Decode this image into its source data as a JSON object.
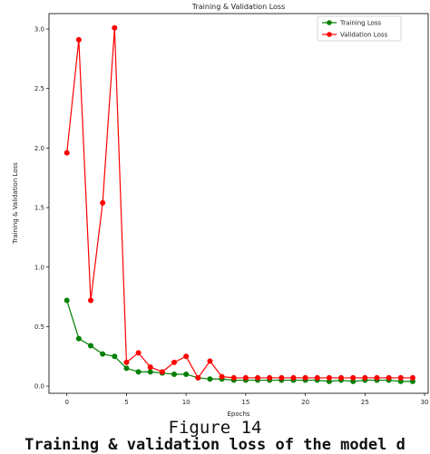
{
  "chart_data": {
    "type": "line",
    "title": "Training & Validation Loss",
    "xlabel": "Epochs",
    "ylabel": "Training & Validation Loss",
    "xlim": [
      -1.5,
      30.3
    ],
    "ylim": [
      -0.06,
      3.13
    ],
    "xticks": [
      0,
      5,
      10,
      15,
      20,
      25,
      30
    ],
    "yticks": [
      0.0,
      0.5,
      1.0,
      1.5,
      2.0,
      2.5,
      3.0
    ],
    "grid": false,
    "legend_position": "top-right",
    "x": [
      0,
      1,
      2,
      3,
      4,
      5,
      6,
      7,
      8,
      9,
      10,
      11,
      12,
      13,
      14,
      15,
      16,
      17,
      18,
      19,
      20,
      21,
      22,
      23,
      24,
      25,
      26,
      27,
      28,
      29
    ],
    "series": [
      {
        "name": "Training Loss",
        "color": "#008000",
        "values": [
          0.72,
          0.4,
          0.34,
          0.27,
          0.25,
          0.15,
          0.12,
          0.12,
          0.11,
          0.1,
          0.1,
          0.07,
          0.06,
          0.06,
          0.05,
          0.05,
          0.05,
          0.05,
          0.05,
          0.05,
          0.05,
          0.05,
          0.04,
          0.05,
          0.04,
          0.05,
          0.05,
          0.05,
          0.04,
          0.04
        ]
      },
      {
        "name": "Validation Loss",
        "color": "#ff0000",
        "values": [
          1.96,
          2.91,
          0.72,
          1.54,
          3.01,
          0.2,
          0.28,
          0.16,
          0.12,
          0.2,
          0.25,
          0.07,
          0.21,
          0.08,
          0.07,
          0.07,
          0.07,
          0.07,
          0.07,
          0.07,
          0.07,
          0.07,
          0.07,
          0.07,
          0.07,
          0.07,
          0.07,
          0.07,
          0.07,
          0.07
        ]
      }
    ]
  },
  "caption": "Figure 14",
  "subcaption": "Training & validation loss of the model d"
}
